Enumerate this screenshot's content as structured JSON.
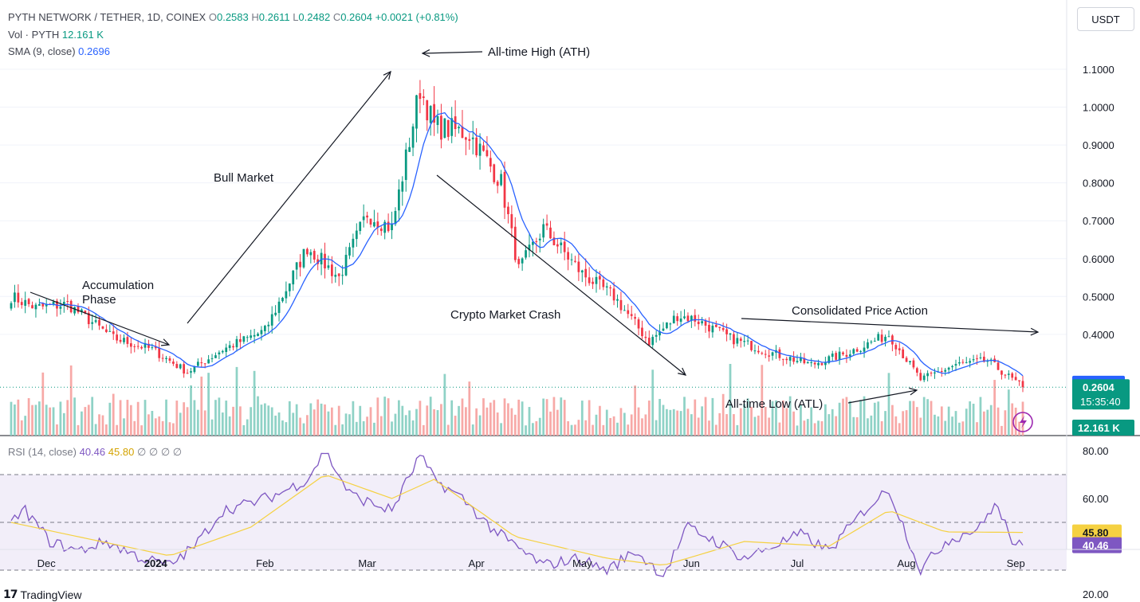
{
  "header": {
    "symbol": "PYTH NETWORK / TETHER, 1D, COINEX",
    "open_label": "O",
    "open": "0.2583",
    "high_label": "H",
    "high": "0.2611",
    "low_label": "L",
    "low": "0.2482",
    "close_label": "C",
    "close": "0.2604",
    "change": "+0.0021 (+0.81%)",
    "vol_label": "Vol · PYTH",
    "vol": "12.161 K",
    "sma_label": "SMA (9, close)",
    "sma": "0.2696"
  },
  "currency_button": "USDT",
  "rsi_header": {
    "label": "RSI (14, close)",
    "rsi": "40.46",
    "ma": "45.80",
    "extra": "∅ ∅ ∅ ∅"
  },
  "brand": "TradingView",
  "colors": {
    "up": "#089981",
    "down": "#f23645",
    "sma": "#2962ff",
    "rsi": "#7e57c2",
    "rsi_ma": "#f5d142",
    "vol_up": "#8fd2c6",
    "vol_down": "#f7a9a7"
  },
  "chart_data": [
    {
      "type": "candlestick",
      "title": "PYTH NETWORK / TETHER, 1D, COINEX",
      "x_ticks": [
        "Dec",
        "2024",
        "Feb",
        "Mar",
        "Apr",
        "May",
        "Jun",
        "Jul",
        "Aug",
        "Sep"
      ],
      "y_ticks": [
        "1.1000",
        "1.0000",
        "0.9000",
        "0.8000",
        "0.7000",
        "0.6000",
        "0.5000",
        "0.4000"
      ],
      "ylim": [
        0.15,
        1.2
      ],
      "price_anchors": {
        "x": [
          "2023-11-21",
          "2023-11-28",
          "2023-12-07",
          "2023-12-20",
          "2023-12-31",
          "2024-01-10",
          "2024-01-20",
          "2024-02-01",
          "2024-02-13",
          "2024-02-22",
          "2024-03-01",
          "2024-03-08",
          "2024-03-16",
          "2024-03-20",
          "2024-03-30",
          "2024-04-08",
          "2024-04-13",
          "2024-04-20",
          "2024-05-01",
          "2024-05-10",
          "2024-05-20",
          "2024-05-28",
          "2024-06-02",
          "2024-06-12",
          "2024-06-24",
          "2024-07-05",
          "2024-07-15",
          "2024-07-27",
          "2024-08-05",
          "2024-08-15",
          "2024-08-24",
          "2024-09-03"
        ],
        "close": [
          0.5,
          0.47,
          0.48,
          0.39,
          0.36,
          0.3,
          0.36,
          0.41,
          0.63,
          0.55,
          0.72,
          0.68,
          1.05,
          0.95,
          0.93,
          0.8,
          0.57,
          0.68,
          0.56,
          0.5,
          0.38,
          0.45,
          0.44,
          0.39,
          0.35,
          0.32,
          0.35,
          0.4,
          0.28,
          0.32,
          0.33,
          0.2604
        ]
      },
      "last_price": "0.2604",
      "sma_value": "0.2696",
      "countdown": "15:35:40",
      "volume_last": "12.161 K",
      "annotations": [
        {
          "text": "All-time High (ATH)"
        },
        {
          "text": "Bull Market"
        },
        {
          "text": "Accumulation Phase",
          "lines": [
            "Accumulation",
            "Phase"
          ]
        },
        {
          "text": "Crypto Market Crash"
        },
        {
          "text": "Consolidated Price Action"
        },
        {
          "text": "All-time Low (ATL)"
        }
      ]
    },
    {
      "type": "line",
      "title": "RSI (14, close)",
      "y_ticks": [
        "80.00",
        "60.00",
        "20.00"
      ],
      "ylim": [
        18,
        82
      ],
      "bands": [
        30,
        50,
        70
      ],
      "rsi_anchors": {
        "x": [
          "2023-11-21",
          "2023-11-25",
          "2023-12-02",
          "2023-12-10",
          "2023-12-18",
          "2023-12-28",
          "2024-01-05",
          "2024-01-12",
          "2024-01-20",
          "2024-01-28",
          "2024-02-05",
          "2024-02-13",
          "2024-02-18",
          "2024-02-25",
          "2024-03-02",
          "2024-03-08",
          "2024-03-16",
          "2024-03-20",
          "2024-03-28",
          "2024-04-05",
          "2024-04-12",
          "2024-04-20",
          "2024-04-30",
          "2024-05-08",
          "2024-05-16",
          "2024-05-24",
          "2024-05-31",
          "2024-06-08",
          "2024-06-16",
          "2024-06-24",
          "2024-07-02",
          "2024-07-10",
          "2024-07-20",
          "2024-07-27",
          "2024-08-05",
          "2024-08-12",
          "2024-08-22",
          "2024-08-26",
          "2024-09-01",
          "2024-09-03"
        ],
        "rsi": [
          50,
          55,
          42,
          38,
          42,
          35,
          32,
          40,
          55,
          58,
          62,
          68,
          80,
          62,
          58,
          55,
          78,
          68,
          60,
          48,
          40,
          32,
          35,
          30,
          38,
          28,
          48,
          42,
          35,
          40,
          45,
          38,
          55,
          64,
          30,
          42,
          48,
          58,
          40,
          40.46
        ]
      },
      "ma_anchors": {
        "x": [
          "2023-11-21",
          "2023-12-10",
          "2024-01-05",
          "2024-01-28",
          "2024-02-18",
          "2024-03-08",
          "2024-03-20",
          "2024-04-12",
          "2024-05-08",
          "2024-05-24",
          "2024-06-16",
          "2024-07-10",
          "2024-07-27",
          "2024-08-12",
          "2024-09-03"
        ],
        "ma": [
          50,
          44,
          36,
          48,
          70,
          60,
          68,
          44,
          35,
          32,
          42,
          40,
          55,
          46,
          45.8
        ]
      },
      "rsi_value": "40.46",
      "ma_value": "45.80"
    }
  ]
}
